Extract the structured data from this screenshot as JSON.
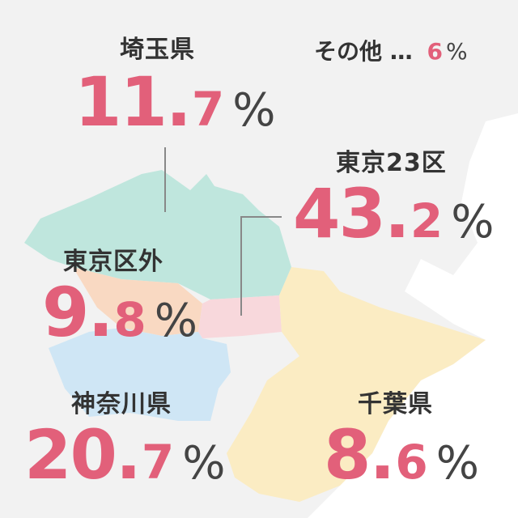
{
  "chart_data": {
    "type": "pie",
    "categories": [
      "東京23区",
      "神奈川県",
      "埼玉県",
      "東京区外",
      "千葉県",
      "その他"
    ],
    "values": [
      43.2,
      20.7,
      11.7,
      9.8,
      8.6,
      6
    ],
    "unit": "%",
    "title": "",
    "colors": {
      "東京23区": "#f8d8dc",
      "神奈川県": "#cfe6f5",
      "埼玉県": "#bfe6dd",
      "東京区外": "#f9d9c2",
      "千葉県": "#fbecc3",
      "その他": "#f2f2f2"
    },
    "accent": "#e2607a"
  },
  "labels": {
    "saitama": "埼玉県",
    "tokyo23": "東京23区",
    "tokyo_outer": "東京区外",
    "kanagawa": "神奈川県",
    "chiba": "千葉県",
    "others": "その他",
    "others_sep": "…"
  },
  "values": {
    "saitama": {
      "int": "11",
      "dot": ".",
      "dec": "7",
      "pct": "%"
    },
    "tokyo23": {
      "int": "43",
      "dot": ".",
      "dec": "2",
      "pct": "%"
    },
    "tokyo_outer": {
      "int": "9",
      "dot": ".",
      "dec": "8",
      "pct": "%"
    },
    "kanagawa": {
      "int": "20",
      "dot": ".",
      "dec": "7",
      "pct": "%"
    },
    "chiba": {
      "int": "8",
      "dot": ".",
      "dec": "6",
      "pct": "%"
    },
    "others": {
      "val": "6",
      "pct": "%"
    }
  }
}
